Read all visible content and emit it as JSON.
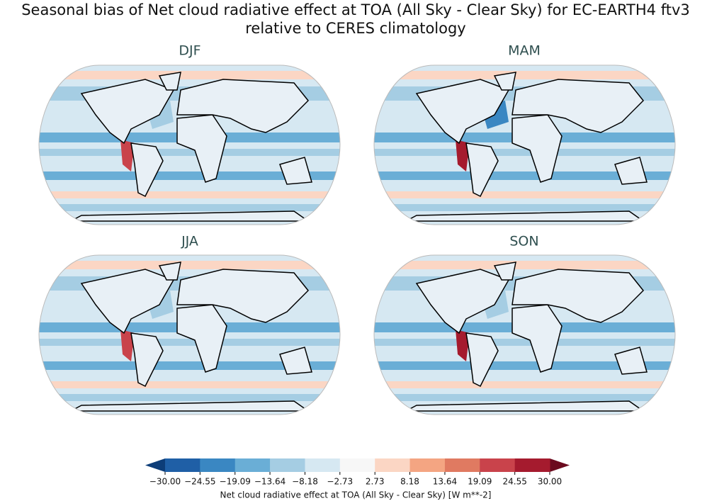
{
  "title": [
    "Seasonal bias of Net cloud radiative effect at TOA (All Sky - Clear Sky) for EC-EARTH4 ftv3",
    "relative to CERES climatology"
  ],
  "panels": [
    {
      "title": "DJF"
    },
    {
      "title": "MAM"
    },
    {
      "title": "JJA"
    },
    {
      "title": "SON"
    }
  ],
  "colorbar": {
    "label": "Net cloud radiative effect at TOA (All Sky - Clear Sky) [W m**-2]",
    "ticks": [
      {
        "value": -30,
        "label": "−30.00"
      },
      {
        "value": -24.55,
        "label": "−24.55"
      },
      {
        "value": -19.09,
        "label": "−19.09"
      },
      {
        "value": -13.64,
        "label": "−13.64"
      },
      {
        "value": -8.18,
        "label": "−8.18"
      },
      {
        "value": -2.73,
        "label": "−2.73"
      },
      {
        "value": 2.73,
        "label": "2.73"
      },
      {
        "value": 8.18,
        "label": "8.18"
      },
      {
        "value": 13.64,
        "label": "13.64"
      },
      {
        "value": 19.09,
        "label": "19.09"
      },
      {
        "value": 24.55,
        "label": "24.55"
      },
      {
        "value": 30,
        "label": "30.00"
      }
    ],
    "colors": [
      "#0d3d78",
      "#1f5fa6",
      "#3a87c2",
      "#6aaed6",
      "#a5cde3",
      "#d6e8f2",
      "#f7f7f7",
      "#fbd6c4",
      "#f4a582",
      "#e07a61",
      "#c9434b",
      "#a51b2e",
      "#6b0a1e"
    ]
  }
}
